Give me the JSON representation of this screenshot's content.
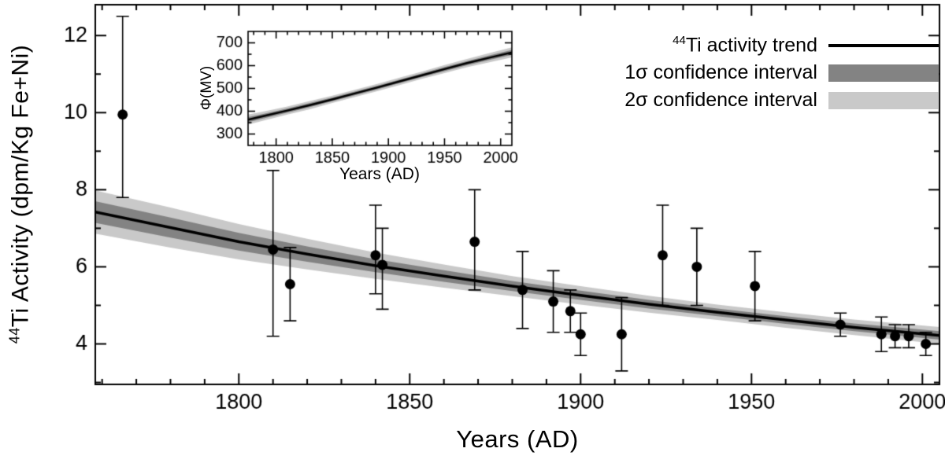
{
  "colors": {
    "trend": "#000000",
    "band1sigma": "#838383",
    "band2sigma": "#c9c9c9",
    "points": "#000000",
    "background": "#ffffff"
  },
  "labels": {
    "main_xlabel": "Years (AD)",
    "main_ylabel_sup": "44",
    "main_ylabel_rest": "Ti Activity (dpm/Kg Fe+Ni)",
    "inset_xlabel": "Years (AD)",
    "inset_ylabel": "Φ(MV)"
  },
  "legend": {
    "position": "top-right",
    "items": [
      {
        "sup": "44",
        "label": "Ti activity trend",
        "swatch": "trend"
      },
      {
        "sup": "",
        "label": "1σ confidence interval",
        "swatch": "band1sigma"
      },
      {
        "sup": "",
        "label": "2σ confidence interval",
        "swatch": "band2sigma"
      }
    ]
  },
  "chart_data": [
    {
      "id": "main",
      "type": "scatter",
      "title": "",
      "xlabel": "Years (AD)",
      "ylabel": "⁴⁴Ti Activity (dpm/Kg Fe+Ni)",
      "grid": false,
      "xlim": [
        1758,
        2005
      ],
      "ylim": [
        2.95,
        12.8
      ],
      "xticks": [
        1800,
        1850,
        1900,
        1950,
        2000
      ],
      "yticks": [
        4,
        6,
        8,
        10,
        12
      ],
      "xminor_step": 10,
      "yminor_step": 1,
      "points": [
        {
          "x": 1766,
          "y": 9.95,
          "lo": 7.8,
          "hi": 12.5
        },
        {
          "x": 1810,
          "y": 6.45,
          "lo": 4.2,
          "hi": 8.5
        },
        {
          "x": 1815,
          "y": 5.55,
          "lo": 4.6,
          "hi": 6.5
        },
        {
          "x": 1840,
          "y": 6.3,
          "lo": 5.3,
          "hi": 7.6
        },
        {
          "x": 1842,
          "y": 6.05,
          "lo": 4.9,
          "hi": 7.0
        },
        {
          "x": 1869,
          "y": 6.65,
          "lo": 5.4,
          "hi": 8.0
        },
        {
          "x": 1883,
          "y": 5.4,
          "lo": 4.4,
          "hi": 6.4
        },
        {
          "x": 1892,
          "y": 5.1,
          "lo": 4.3,
          "hi": 5.9
        },
        {
          "x": 1897,
          "y": 4.85,
          "lo": 4.3,
          "hi": 5.4
        },
        {
          "x": 1900,
          "y": 4.25,
          "lo": 3.7,
          "hi": 4.8
        },
        {
          "x": 1912,
          "y": 4.25,
          "lo": 3.3,
          "hi": 5.2
        },
        {
          "x": 1924,
          "y": 6.3,
          "lo": 5.0,
          "hi": 7.6
        },
        {
          "x": 1934,
          "y": 6.0,
          "lo": 5.0,
          "hi": 7.0
        },
        {
          "x": 1951,
          "y": 5.5,
          "lo": 4.6,
          "hi": 6.4
        },
        {
          "x": 1976,
          "y": 4.5,
          "lo": 4.2,
          "hi": 4.8
        },
        {
          "x": 1988,
          "y": 4.25,
          "lo": 3.8,
          "hi": 4.7
        },
        {
          "x": 1992,
          "y": 4.2,
          "lo": 3.9,
          "hi": 4.5
        },
        {
          "x": 1996,
          "y": 4.2,
          "lo": 3.9,
          "hi": 4.5
        },
        {
          "x": 2001,
          "y": 4.0,
          "lo": 3.7,
          "hi": 4.3
        }
      ],
      "trend": {
        "x": [
          1758,
          1780,
          1800,
          1820,
          1840,
          1860,
          1880,
          1900,
          1920,
          1940,
          1960,
          1980,
          2005
        ],
        "y": [
          7.42,
          7.02,
          6.65,
          6.33,
          6.03,
          5.76,
          5.5,
          5.26,
          5.03,
          4.82,
          4.62,
          4.43,
          4.22
        ],
        "s1": [
          0.28,
          0.26,
          0.23,
          0.2,
          0.17,
          0.15,
          0.13,
          0.12,
          0.11,
          0.1,
          0.1,
          0.1,
          0.11
        ]
      }
    },
    {
      "id": "inset",
      "type": "line",
      "title": "",
      "xlabel": "Years (AD)",
      "ylabel": "Φ(MV)",
      "grid": false,
      "xlim": [
        1775,
        2010
      ],
      "ylim": [
        250,
        750
      ],
      "xticks": [
        1800,
        1850,
        1900,
        1950,
        2000
      ],
      "yticks": [
        300,
        400,
        500,
        600,
        700
      ],
      "xminor_step": 10,
      "yminor_step": 50,
      "trend": {
        "x": [
          1775,
          1790,
          1810,
          1830,
          1850,
          1870,
          1890,
          1910,
          1930,
          1950,
          1970,
          1990,
          2010
        ],
        "y": [
          363,
          380,
          403,
          427,
          452,
          478,
          504,
          531,
          558,
          585,
          611,
          635,
          658
        ],
        "s1": [
          11,
          10,
          9,
          9,
          8,
          8,
          8,
          8,
          8,
          9,
          9,
          10,
          11
        ]
      }
    }
  ]
}
